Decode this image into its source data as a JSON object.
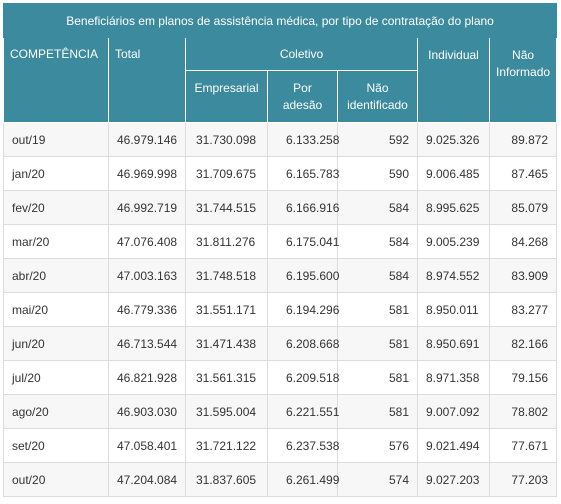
{
  "table": {
    "caption": "Beneficiários em planos de assistência médica, por tipo de contratação do plano",
    "headers": {
      "competencia": "COMPETÊNCIA",
      "total": "Total",
      "coletivo": "Coletivo",
      "empresarial": "Empresarial",
      "por_adesao": "Por adesão",
      "nao_identificado": "Não identificado",
      "individual": "Individual",
      "nao_informado": "Não Informado"
    },
    "rows": [
      {
        "competencia": "out/19",
        "total": "46.979.146",
        "empresarial": "31.730.098",
        "por_adesao": "6.133.258",
        "nao_identificado": "592",
        "individual": "9.025.326",
        "nao_informado": "89.872"
      },
      {
        "competencia": "jan/20",
        "total": "46.969.998",
        "empresarial": "31.709.675",
        "por_adesao": "6.165.783",
        "nao_identificado": "590",
        "individual": "9.006.485",
        "nao_informado": "87.465"
      },
      {
        "competencia": "fev/20",
        "total": "46.992.719",
        "empresarial": "31.744.515",
        "por_adesao": "6.166.916",
        "nao_identificado": "584",
        "individual": "8.995.625",
        "nao_informado": "85.079"
      },
      {
        "competencia": "mar/20",
        "total": "47.076.408",
        "empresarial": "31.811.276",
        "por_adesao": "6.175.041",
        "nao_identificado": "584",
        "individual": "9.005.239",
        "nao_informado": "84.268"
      },
      {
        "competencia": "abr/20",
        "total": "47.003.163",
        "empresarial": "31.748.518",
        "por_adesao": "6.195.600",
        "nao_identificado": "584",
        "individual": "8.974.552",
        "nao_informado": "83.909"
      },
      {
        "competencia": "mai/20",
        "total": "46.779.336",
        "empresarial": "31.551.171",
        "por_adesao": "6.194.296",
        "nao_identificado": "581",
        "individual": "8.950.011",
        "nao_informado": "83.277"
      },
      {
        "competencia": "jun/20",
        "total": "46.713.544",
        "empresarial": "31.471.438",
        "por_adesao": "6.208.668",
        "nao_identificado": "581",
        "individual": "8.950.691",
        "nao_informado": "82.166"
      },
      {
        "competencia": "jul/20",
        "total": "46.821.928",
        "empresarial": "31.561.315",
        "por_adesao": "6.209.518",
        "nao_identificado": "581",
        "individual": "8.971.358",
        "nao_informado": "79.156"
      },
      {
        "competencia": "ago/20",
        "total": "46.903.030",
        "empresarial": "31.595.004",
        "por_adesao": "6.221.551",
        "nao_identificado": "581",
        "individual": "9.007.092",
        "nao_informado": "78.802"
      },
      {
        "competencia": "set/20",
        "total": "47.058.401",
        "empresarial": "31.721.122",
        "por_adesao": "6.237.538",
        "nao_identificado": "576",
        "individual": "9.021.494",
        "nao_informado": "77.671"
      },
      {
        "competencia": "out/20",
        "total": "47.204.084",
        "empresarial": "31.837.605",
        "por_adesao": "6.261.499",
        "nao_identificado": "574",
        "individual": "9.027.203",
        "nao_informado": "77.203"
      }
    ]
  },
  "colors": {
    "header_bg": "#3b8a9e",
    "header_text": "#ffffff",
    "row_alt_bg": "#f7f7f7",
    "cell_text": "#333333"
  }
}
